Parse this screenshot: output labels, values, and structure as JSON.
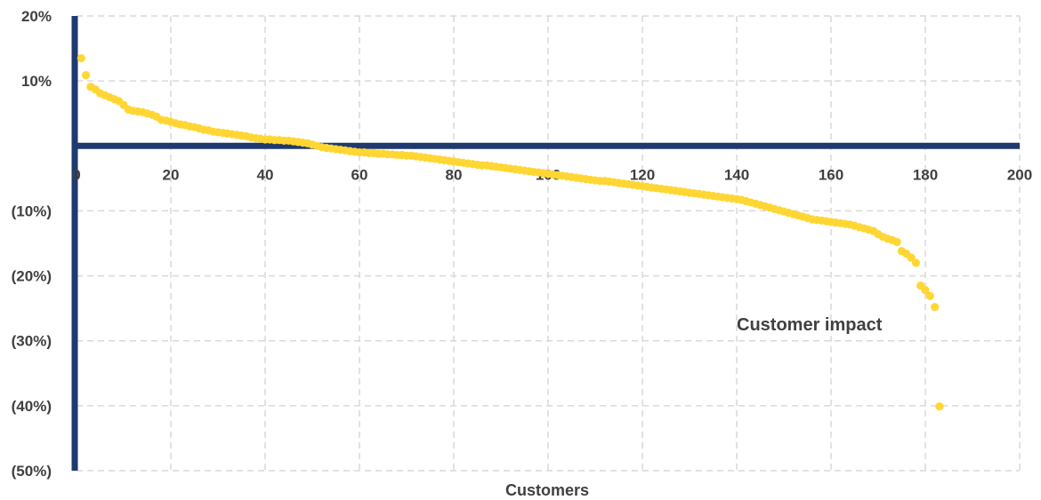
{
  "chart_data": {
    "type": "scatter",
    "xlabel": "Customers",
    "ylabel": "",
    "xlim": [
      0,
      200
    ],
    "ylim": [
      -0.5,
      0.2
    ],
    "x_ticks": [
      0,
      20,
      40,
      60,
      80,
      100,
      120,
      140,
      160,
      180,
      200
    ],
    "x_tick_labels": [
      "0",
      "20",
      "40",
      "60",
      "80",
      "100",
      "120",
      "140",
      "160",
      "180",
      "200"
    ],
    "y_ticks": [
      0.2,
      0.1,
      -0.1,
      -0.2,
      -0.3,
      -0.4,
      -0.5
    ],
    "y_tick_labels": [
      "20%",
      "10%",
      "(10%)",
      "(20%)",
      "(30%)",
      "(40%)",
      "(50%)"
    ],
    "grid": true,
    "annotation": "Customer impact",
    "colors": {
      "points": "#ffd633",
      "axes": "#1f3a6e",
      "grid": "#d9d9d9",
      "text": "#404040"
    },
    "series": [
      {
        "points": [
          [
            1,
            0.135
          ],
          [
            2,
            0.109
          ],
          [
            3,
            0.091
          ],
          [
            4,
            0.087
          ],
          [
            5,
            0.081
          ],
          [
            6,
            0.078
          ],
          [
            7,
            0.075
          ],
          [
            8,
            0.072
          ],
          [
            9,
            0.069
          ],
          [
            10,
            0.063
          ],
          [
            11,
            0.056
          ],
          [
            12,
            0.054
          ],
          [
            13,
            0.053
          ],
          [
            14,
            0.052
          ],
          [
            15,
            0.05
          ],
          [
            16,
            0.048
          ],
          [
            17,
            0.045
          ],
          [
            18,
            0.04
          ],
          [
            19,
            0.039
          ],
          [
            20,
            0.037
          ],
          [
            21,
            0.035
          ],
          [
            22,
            0.033
          ],
          [
            23,
            0.032
          ],
          [
            24,
            0.03
          ],
          [
            25,
            0.029
          ],
          [
            26,
            0.027
          ],
          [
            27,
            0.025
          ],
          [
            28,
            0.024
          ],
          [
            29,
            0.022
          ],
          [
            30,
            0.021
          ],
          [
            31,
            0.02
          ],
          [
            32,
            0.019
          ],
          [
            33,
            0.018
          ],
          [
            34,
            0.017
          ],
          [
            35,
            0.016
          ],
          [
            36,
            0.015
          ],
          [
            37,
            0.013
          ],
          [
            38,
            0.012
          ],
          [
            39,
            0.011
          ],
          [
            40,
            0.01
          ],
          [
            41,
            0.01
          ],
          [
            42,
            0.009
          ],
          [
            43,
            0.009
          ],
          [
            44,
            0.008
          ],
          [
            45,
            0.008
          ],
          [
            46,
            0.007
          ],
          [
            47,
            0.006
          ],
          [
            48,
            0.005
          ],
          [
            49,
            0.004
          ],
          [
            50,
            0.002
          ],
          [
            51,
            0.0
          ],
          [
            52,
            -0.002
          ],
          [
            53,
            -0.003
          ],
          [
            54,
            -0.004
          ],
          [
            55,
            -0.005
          ],
          [
            56,
            -0.006
          ],
          [
            57,
            -0.007
          ],
          [
            58,
            -0.008
          ],
          [
            59,
            -0.009
          ],
          [
            60,
            -0.01
          ],
          [
            61,
            -0.01
          ],
          [
            62,
            -0.011
          ],
          [
            63,
            -0.011
          ],
          [
            64,
            -0.012
          ],
          [
            65,
            -0.012
          ],
          [
            66,
            -0.013
          ],
          [
            67,
            -0.013
          ],
          [
            68,
            -0.014
          ],
          [
            69,
            -0.014
          ],
          [
            70,
            -0.015
          ],
          [
            71,
            -0.015
          ],
          [
            72,
            -0.016
          ],
          [
            73,
            -0.017
          ],
          [
            74,
            -0.018
          ],
          [
            75,
            -0.019
          ],
          [
            76,
            -0.02
          ],
          [
            77,
            -0.021
          ],
          [
            78,
            -0.022
          ],
          [
            79,
            -0.023
          ],
          [
            80,
            -0.024
          ],
          [
            81,
            -0.025
          ],
          [
            82,
            -0.026
          ],
          [
            83,
            -0.027
          ],
          [
            84,
            -0.028
          ],
          [
            85,
            -0.029
          ],
          [
            86,
            -0.03
          ],
          [
            87,
            -0.03
          ],
          [
            88,
            -0.031
          ],
          [
            89,
            -0.032
          ],
          [
            90,
            -0.033
          ],
          [
            91,
            -0.034
          ],
          [
            92,
            -0.035
          ],
          [
            93,
            -0.036
          ],
          [
            94,
            -0.037
          ],
          [
            95,
            -0.038
          ],
          [
            96,
            -0.039
          ],
          [
            97,
            -0.04
          ],
          [
            98,
            -0.041
          ],
          [
            99,
            -0.042
          ],
          [
            100,
            -0.043
          ],
          [
            101,
            -0.044
          ],
          [
            102,
            -0.045
          ],
          [
            103,
            -0.046
          ],
          [
            104,
            -0.047
          ],
          [
            105,
            -0.048
          ],
          [
            106,
            -0.049
          ],
          [
            107,
            -0.05
          ],
          [
            108,
            -0.051
          ],
          [
            109,
            -0.052
          ],
          [
            110,
            -0.053
          ],
          [
            111,
            -0.054
          ],
          [
            112,
            -0.054
          ],
          [
            113,
            -0.055
          ],
          [
            114,
            -0.056
          ],
          [
            115,
            -0.057
          ],
          [
            116,
            -0.058
          ],
          [
            117,
            -0.059
          ],
          [
            118,
            -0.06
          ],
          [
            119,
            -0.061
          ],
          [
            120,
            -0.062
          ],
          [
            121,
            -0.063
          ],
          [
            122,
            -0.064
          ],
          [
            123,
            -0.065
          ],
          [
            124,
            -0.066
          ],
          [
            125,
            -0.067
          ],
          [
            126,
            -0.068
          ],
          [
            127,
            -0.069
          ],
          [
            128,
            -0.07
          ],
          [
            129,
            -0.071
          ],
          [
            130,
            -0.072
          ],
          [
            131,
            -0.073
          ],
          [
            132,
            -0.074
          ],
          [
            133,
            -0.075
          ],
          [
            134,
            -0.076
          ],
          [
            135,
            -0.077
          ],
          [
            136,
            -0.078
          ],
          [
            137,
            -0.079
          ],
          [
            138,
            -0.08
          ],
          [
            139,
            -0.081
          ],
          [
            140,
            -0.082
          ],
          [
            141,
            -0.083
          ],
          [
            142,
            -0.085
          ],
          [
            143,
            -0.087
          ],
          [
            144,
            -0.089
          ],
          [
            145,
            -0.091
          ],
          [
            146,
            -0.093
          ],
          [
            147,
            -0.095
          ],
          [
            148,
            -0.097
          ],
          [
            149,
            -0.099
          ],
          [
            150,
            -0.101
          ],
          [
            151,
            -0.103
          ],
          [
            152,
            -0.105
          ],
          [
            153,
            -0.107
          ],
          [
            154,
            -0.109
          ],
          [
            155,
            -0.111
          ],
          [
            156,
            -0.113
          ],
          [
            157,
            -0.114
          ],
          [
            158,
            -0.115
          ],
          [
            159,
            -0.116
          ],
          [
            160,
            -0.117
          ],
          [
            161,
            -0.118
          ],
          [
            162,
            -0.119
          ],
          [
            163,
            -0.12
          ],
          [
            164,
            -0.121
          ],
          [
            165,
            -0.123
          ],
          [
            166,
            -0.125
          ],
          [
            167,
            -0.127
          ],
          [
            168,
            -0.129
          ],
          [
            169,
            -0.131
          ],
          [
            170,
            -0.136
          ],
          [
            171,
            -0.14
          ],
          [
            172,
            -0.143
          ],
          [
            173,
            -0.145
          ],
          [
            174,
            -0.148
          ],
          [
            175,
            -0.162
          ],
          [
            176,
            -0.166
          ],
          [
            177,
            -0.172
          ],
          [
            178,
            -0.18
          ],
          [
            179,
            -0.215
          ],
          [
            180,
            -0.222
          ],
          [
            181,
            -0.231
          ],
          [
            182,
            -0.248
          ],
          [
            183,
            -0.401
          ]
        ]
      }
    ]
  }
}
